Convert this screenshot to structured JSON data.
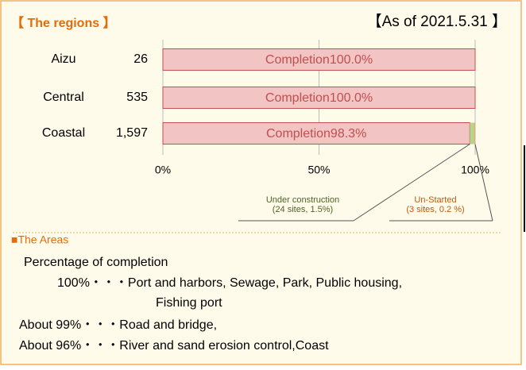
{
  "chart_data": {
    "type": "stacked-bar",
    "title": "【 The regions 】",
    "subtitle": "【As of 2021.5.31 】",
    "categories": [
      "Aizu",
      "Central",
      "Coastal"
    ],
    "region_totals": [
      "26",
      "535",
      "1,597"
    ],
    "series": [
      {
        "name": "Completion",
        "color": "#f2c4c4",
        "values": [
          100,
          100,
          98.3
        ],
        "value_labels": [
          "Completion100.0%",
          "Completion100.0%",
          "Completion98.3%"
        ]
      },
      {
        "name": "Under construction",
        "color": "#b5d58a",
        "values": [
          0,
          0,
          1.5
        ]
      },
      {
        "name": "Un-Started",
        "color": "#f79646",
        "values": [
          0,
          0,
          0.2
        ]
      }
    ],
    "xlim": [
      0,
      100
    ],
    "xticks": [
      {
        "value": 0,
        "label": "0%"
      },
      {
        "value": 50,
        "label": "50%"
      },
      {
        "value": 100,
        "label": "100%"
      }
    ],
    "grid": true,
    "annotations": [
      {
        "lines": [
          "Under construction",
          "(24 sites, 1.5%)"
        ],
        "color": "#4f6228"
      },
      {
        "lines": [
          "Un-Started",
          "(3 sites, 0.2 %)"
        ],
        "color": "#c05a10"
      }
    ]
  },
  "areas": {
    "heading": "■The Areas",
    "lines": [
      "Percentage of completion",
      "100%・・・Port and harbors, Sewage, Park, Public housing,",
      "Fishing port",
      "About  99%・・・Road and  bridge,",
      "About  96%・・・River and sand erosion control,Coast"
    ]
  }
}
